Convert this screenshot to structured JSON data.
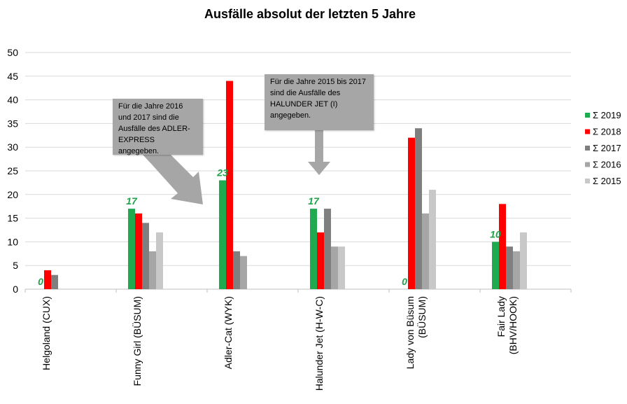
{
  "colors": {
    "s2019": "#1faa4f",
    "s2018": "#ff0000",
    "s2017": "#7f7f7f",
    "s2016": "#a6a6a6",
    "s2015": "#c8c8c8",
    "grid": "#d9d9d9",
    "callout": "#a6a6a6",
    "datalabel": "#21a24a"
  },
  "callouts": [
    {
      "text": "Für die Jahre 2016 und 2017 sind die Ausfälle des ADLER-EXPRESS  angegeben."
    },
    {
      "text": "Für die Jahre 2015 bis 2017 sind die Ausfälle des HALUNDER  JET  (I) angegeben."
    }
  ],
  "chart_data": {
    "type": "bar",
    "title": "Ausfälle  absolut der letzten 5 Jahre",
    "categories": [
      [
        "Helgoland (CUX)"
      ],
      [
        "Funny Girl (BÜSUM)"
      ],
      [
        "Adler-Cat (WYK)"
      ],
      [
        "Halunder Jet (H-W-C)"
      ],
      [
        "Lady von Büsum",
        "(BÜSUM)"
      ],
      [
        "Fair Lady",
        "(BHV/HOOK)"
      ]
    ],
    "series": [
      {
        "name": "Σ 2019",
        "color_key": "s2019",
        "values": [
          0,
          17,
          23,
          17,
          0,
          10
        ]
      },
      {
        "name": "Σ 2018",
        "color_key": "s2018",
        "values": [
          4,
          16,
          44,
          12,
          32,
          18
        ]
      },
      {
        "name": "Σ 2017",
        "color_key": "s2017",
        "values": [
          3,
          14,
          8,
          17,
          34,
          9
        ]
      },
      {
        "name": "Σ 2016",
        "color_key": "s2016",
        "values": [
          0,
          8,
          7,
          9,
          16,
          8
        ]
      },
      {
        "name": "Σ 2015",
        "color_key": "s2015",
        "values": [
          0,
          12,
          0,
          9,
          21,
          12
        ]
      }
    ],
    "data_labels": {
      "series": "Σ 2019",
      "values": [
        0,
        17,
        23,
        17,
        0,
        10
      ]
    },
    "yticks": [
      0,
      5,
      10,
      15,
      20,
      25,
      30,
      35,
      40,
      45,
      50
    ],
    "ylim": [
      0,
      50
    ],
    "xlabel": "",
    "ylabel": "",
    "grid": true,
    "legend": "right"
  }
}
